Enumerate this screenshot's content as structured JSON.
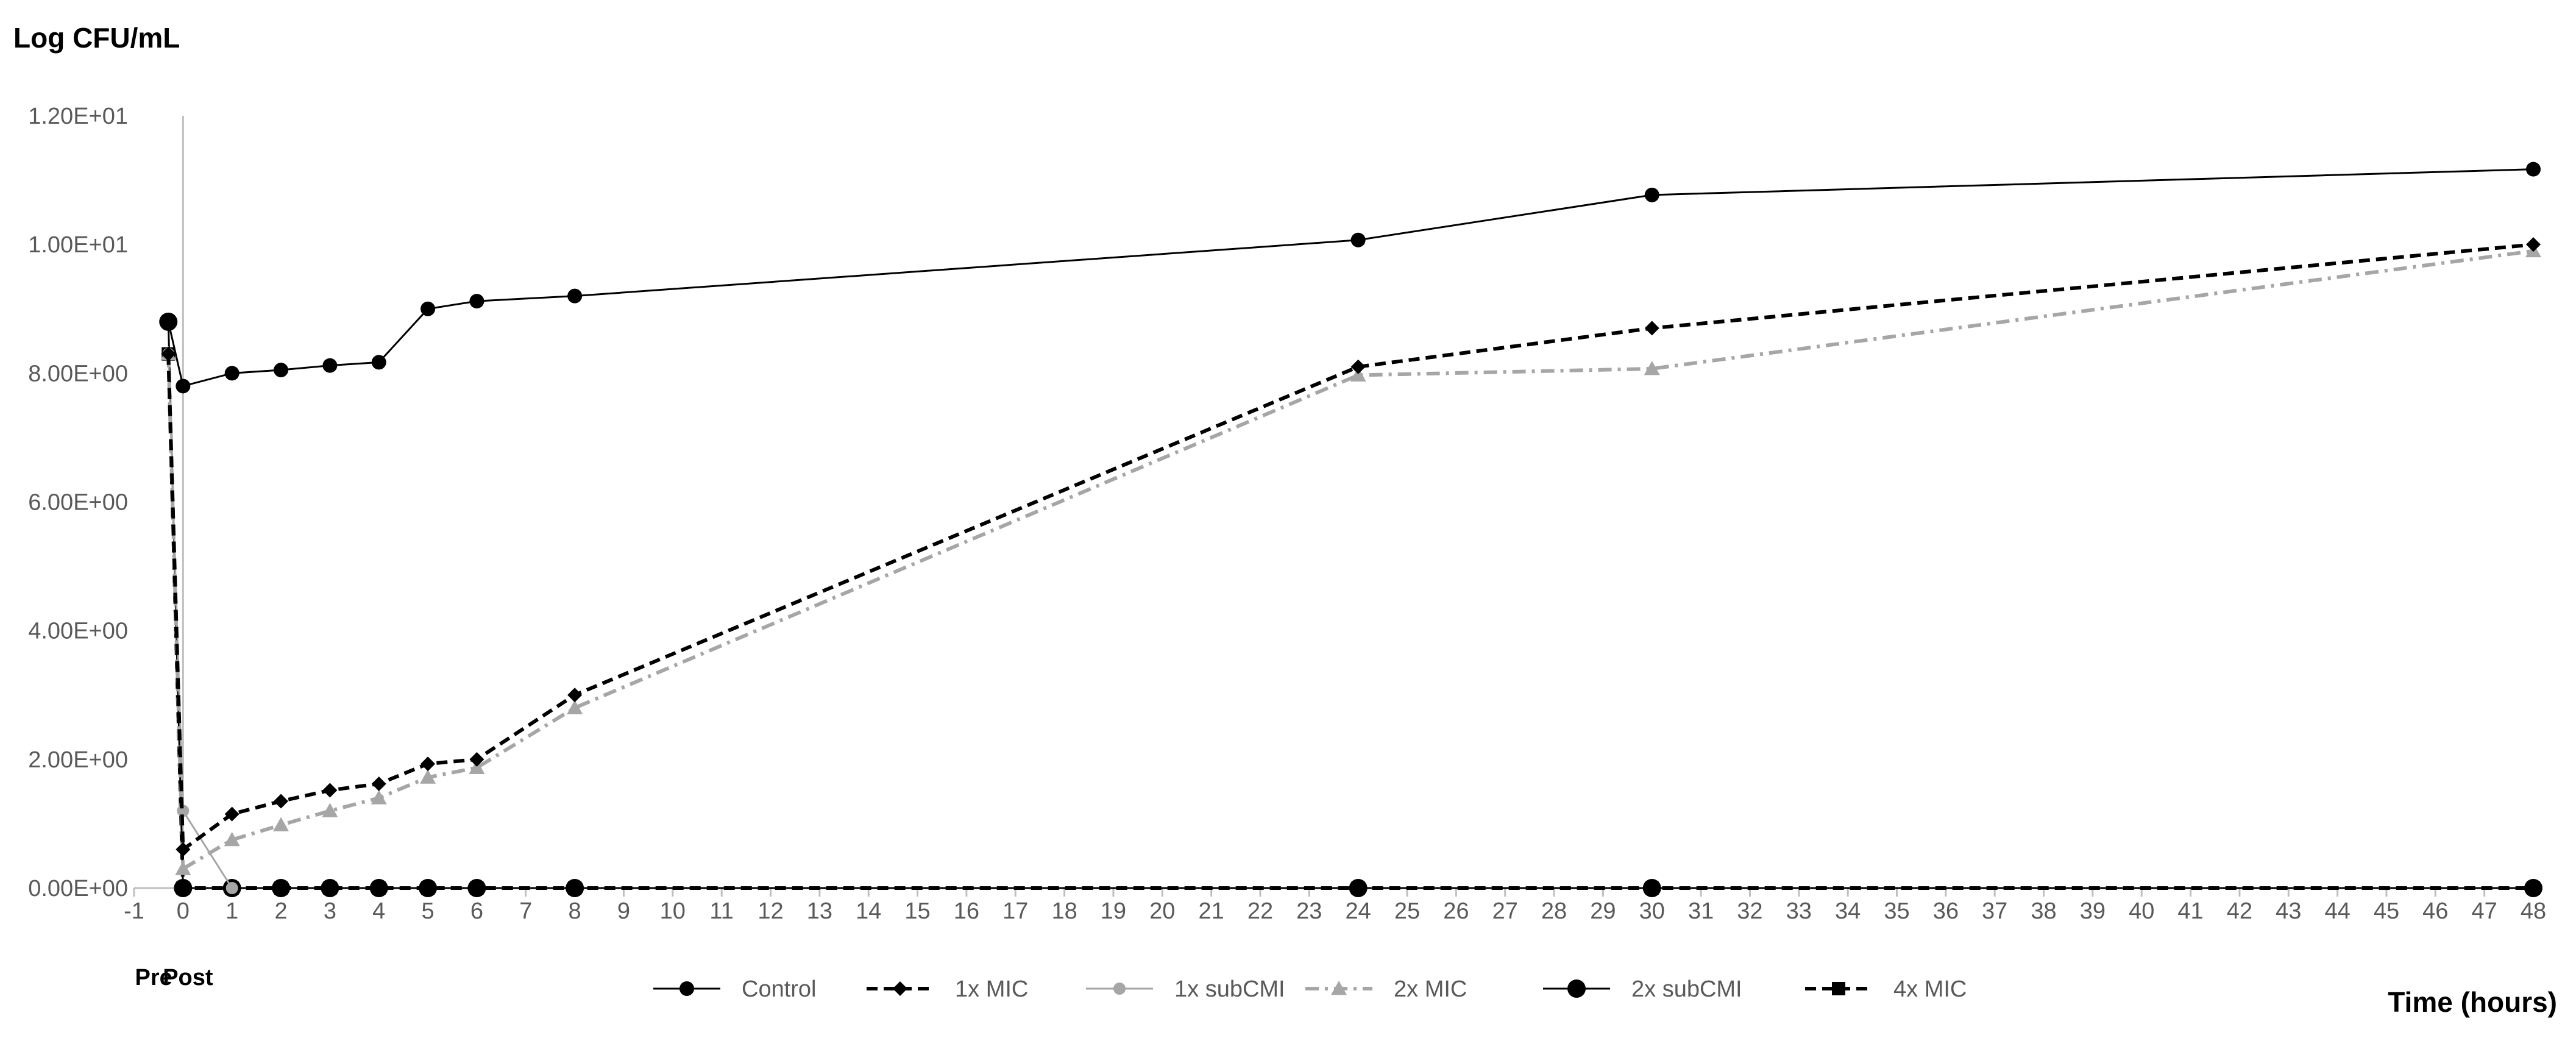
{
  "chart_data": {
    "type": "line",
    "ylabel": "Log CFU/mL",
    "xlabel": "Time (hours)",
    "xlim": [
      -1,
      48
    ],
    "ylim": [
      0,
      12
    ],
    "x_ticks": [
      -1,
      0,
      1,
      2,
      3,
      4,
      5,
      6,
      7,
      8,
      9,
      10,
      11,
      12,
      13,
      14,
      15,
      16,
      17,
      18,
      19,
      20,
      21,
      22,
      23,
      24,
      25,
      26,
      27,
      28,
      29,
      30,
      31,
      32,
      33,
      34,
      35,
      36,
      37,
      38,
      39,
      40,
      41,
      42,
      43,
      44,
      45,
      46,
      47,
      48
    ],
    "y_ticks": [
      0,
      2,
      4,
      6,
      8,
      10,
      12
    ],
    "y_tick_labels": [
      "0.00E+00",
      "2.00E+00",
      "4.00E+00",
      "6.00E+00",
      "8.00E+00",
      "1.00E+01",
      "1.20E+01"
    ],
    "extra_x_labels": [
      {
        "text": "Pre",
        "x": -0.6
      },
      {
        "text": "Post",
        "x": 0.1
      }
    ],
    "grid": false,
    "legend_position": "bottom",
    "series": [
      {
        "name": "Control",
        "color": "#000000",
        "dash": "solid",
        "marker": "circle",
        "points": [
          [
            -0.3,
            8.8
          ],
          [
            0,
            7.8
          ],
          [
            1,
            8.0
          ],
          [
            2,
            8.05
          ],
          [
            3,
            8.12
          ],
          [
            4,
            8.17
          ],
          [
            5,
            9.0
          ],
          [
            6,
            9.12
          ],
          [
            8,
            9.2
          ],
          [
            24,
            10.07
          ],
          [
            30,
            10.77
          ],
          [
            48,
            11.17
          ]
        ]
      },
      {
        "name": "1x MIC",
        "color": "#000000",
        "dash": "dash",
        "marker": "diamond",
        "points": [
          [
            -0.3,
            8.3
          ],
          [
            0,
            0.6
          ],
          [
            1,
            1.15
          ],
          [
            2,
            1.35
          ],
          [
            3,
            1.52
          ],
          [
            4,
            1.62
          ],
          [
            5,
            1.93
          ],
          [
            6,
            2.0
          ],
          [
            8,
            3.0
          ],
          [
            24,
            8.1
          ],
          [
            30,
            8.7
          ],
          [
            48,
            10.0
          ]
        ]
      },
      {
        "name": "1x subCMI",
        "color": "#a6a6a6",
        "dash": "solid",
        "marker": "circle-small",
        "points": [
          [
            -0.3,
            8.3
          ],
          [
            0,
            1.2
          ],
          [
            1,
            0
          ]
        ]
      },
      {
        "name": "2x MIC",
        "color": "#a6a6a6",
        "dash": "dashdot",
        "marker": "triangle",
        "points": [
          [
            -0.3,
            8.3
          ],
          [
            0,
            0.3
          ],
          [
            1,
            0.75
          ],
          [
            2,
            0.98
          ],
          [
            3,
            1.2
          ],
          [
            4,
            1.4
          ],
          [
            5,
            1.72
          ],
          [
            6,
            1.87
          ],
          [
            8,
            2.8
          ],
          [
            24,
            7.97
          ],
          [
            30,
            8.07
          ],
          [
            48,
            9.9
          ]
        ]
      },
      {
        "name": "2x subCMI",
        "color": "#000000",
        "dash": "solid",
        "marker": "circle-large",
        "points": [
          [
            -0.3,
            8.8
          ],
          [
            0,
            0
          ],
          [
            1,
            0
          ],
          [
            2,
            0
          ],
          [
            3,
            0
          ],
          [
            4,
            0
          ],
          [
            5,
            0
          ],
          [
            6,
            0
          ],
          [
            8,
            0
          ],
          [
            24,
            0
          ],
          [
            30,
            0
          ],
          [
            48,
            0
          ]
        ]
      },
      {
        "name": "4x MIC",
        "color": "#000000",
        "dash": "dash",
        "marker": "square",
        "points": [
          [
            -0.3,
            8.3
          ],
          [
            0,
            0
          ],
          [
            1,
            0
          ],
          [
            2,
            0
          ],
          [
            3,
            0
          ],
          [
            4,
            0
          ],
          [
            5,
            0
          ],
          [
            6,
            0
          ],
          [
            8,
            0
          ],
          [
            24,
            0
          ],
          [
            30,
            0
          ],
          [
            48,
            0
          ]
        ]
      }
    ]
  }
}
